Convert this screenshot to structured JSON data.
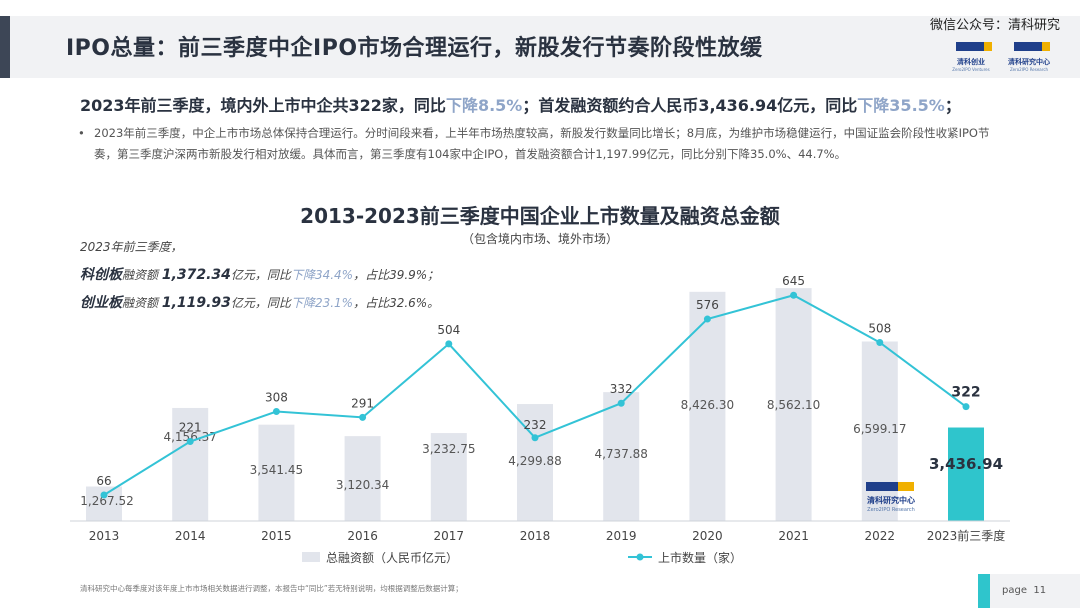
{
  "header": {
    "title": "IPO总量：前三季度中企IPO市场合理运行，新股发行节奏阶段性放缓",
    "wechat": "微信公众号：清科研究",
    "logo_left": {
      "mark": "ZERO IPO",
      "cn": "清科创业",
      "en": "Zero2IPO Ventures"
    },
    "logo_right": {
      "mark": "ZERO IPO",
      "cn": "清科研究中心",
      "en": "Zero2IPO Research"
    }
  },
  "summary": {
    "part1": "2023年前三季度，境内外上市中企共322家，同比",
    "down1": "下降8.5%",
    "part2": "；首发融资额约合人民币3,436.94亿元，同比",
    "down2": "下降35.5%",
    "part3": "；"
  },
  "bullet": {
    "dot": "•",
    "text": "2023年前三季度，中企上市市场总体保持合理运行。分时间段来看，上半年市场热度较高，新股发行数量同比增长；8月底，为维护市场稳健运行，中国证监会阶段性收紧IPO节奏，第三季度沪深两市新股发行相对放缓。具体而言，第三季度有104家中企IPO，首发融资额合计1,197.99亿元，同比分别下降35.0%、44.7%。"
  },
  "notes": {
    "heading": "2023年前三季度，",
    "line1": {
      "bold": "科创板",
      "a": "融资额 ",
      "amount": "1,372.34",
      "b": "亿元，同比",
      "down": "下降34.4%",
      "c": "，占比39.9%；"
    },
    "line2": {
      "bold": "创业板",
      "a": "融资额 ",
      "amount": "1,119.93",
      "b": "亿元，同比",
      "down": "下降23.1%",
      "c": "，占比32.6%。"
    }
  },
  "chart_data": {
    "type": "bar",
    "title": "2013-2023前三季度中国企业上市数量及融资总金额",
    "subtitle": "（包含境内市场、境外市场）",
    "categories": [
      "2013",
      "2014",
      "2015",
      "2016",
      "2017",
      "2018",
      "2019",
      "2020",
      "2021",
      "2022",
      "2023前三季度"
    ],
    "series": [
      {
        "name": "总融资额（人民币亿元）",
        "kind": "bar",
        "values": [
          1267.52,
          4156.37,
          3541.45,
          3120.34,
          3232.75,
          4299.88,
          4737.88,
          8426.3,
          8562.1,
          6599.17,
          3436.94
        ],
        "labels": [
          "1,267.52",
          "4,156.37",
          "3,541.45",
          "3,120.34",
          "3,232.75",
          "4,299.88",
          "4,737.88",
          "8,426.30",
          "8,562.10",
          "6,599.17",
          "3,436.94"
        ]
      },
      {
        "name": "上市数量（家）",
        "kind": "line",
        "values": [
          66,
          221,
          308,
          291,
          504,
          232,
          332,
          576,
          645,
          508,
          322
        ]
      }
    ],
    "bar_color": "#e2e5ec",
    "highlight_bar_color": "#2fc5cc",
    "line_color": "#33c3d6",
    "grid": false,
    "legend_position": "bottom"
  },
  "watermark": {
    "mark": "ZERO IPO",
    "cn": "清科研究中心",
    "en": "Zero2IPO Research"
  },
  "footer": {
    "note": "清科研究中心每季度对该年度上市市场相关数据进行调整，本报告中“同比”若无特别说明，均根据调整后数据计算；",
    "page_label": "page",
    "page_number": "11"
  }
}
